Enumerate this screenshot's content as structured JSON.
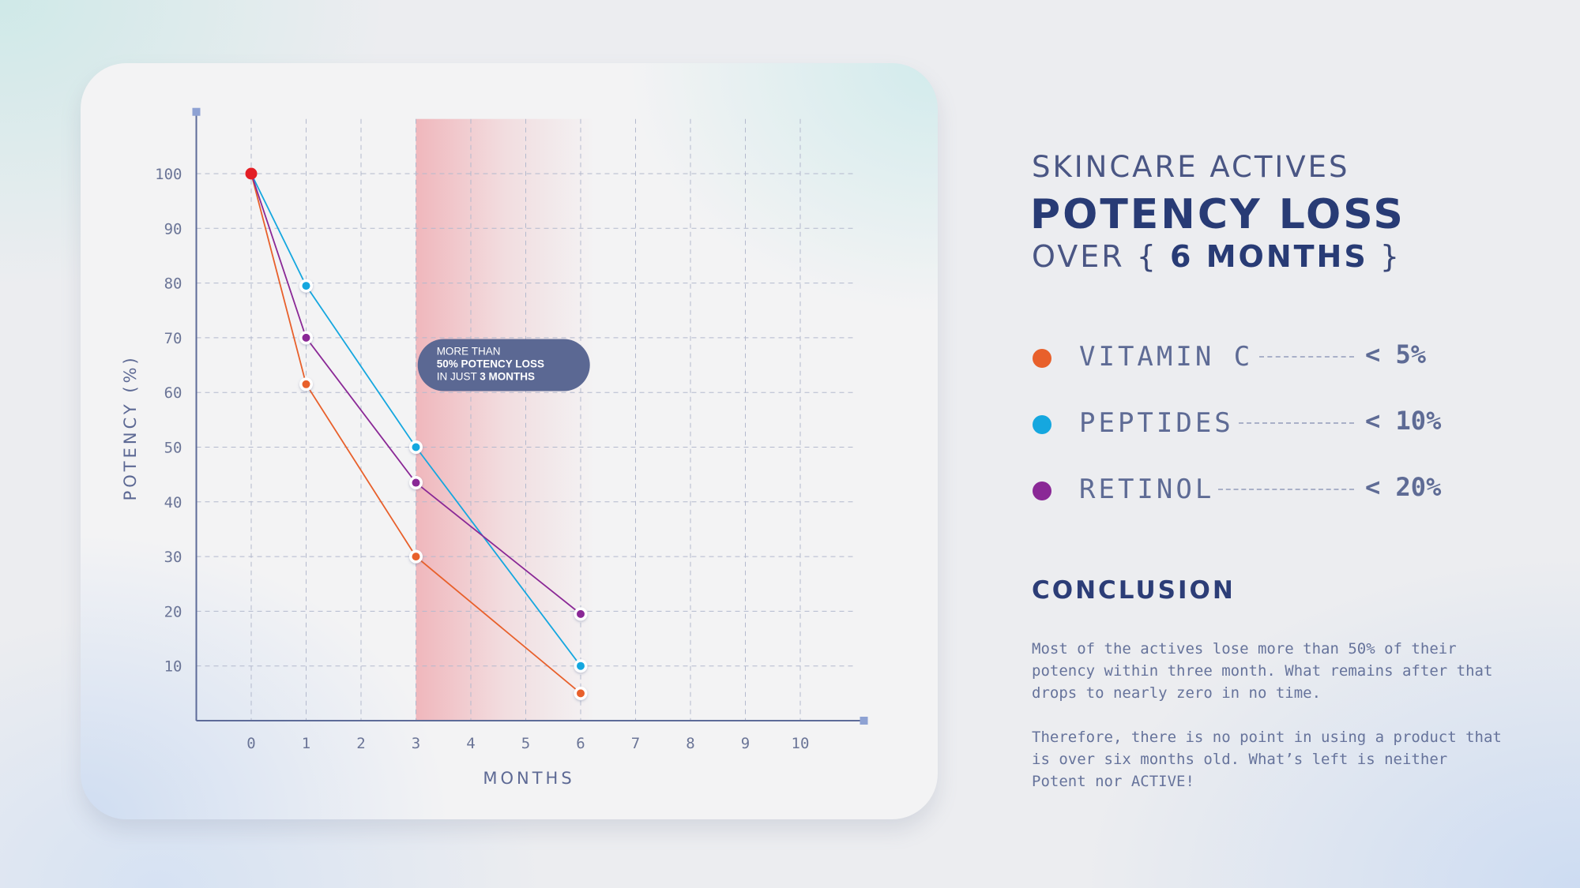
{
  "header": {
    "line1": "SKINCARE ACTIVES",
    "line2": "POTENCY LOSS",
    "line3_prefix": "OVER",
    "line3_open": "{",
    "line3_emphasis": "6 MONTHS",
    "line3_close": "}"
  },
  "legend": [
    {
      "name": "VITAMIN C",
      "value": "< 5%",
      "color": "#e8602b"
    },
    {
      "name": "PEPTIDES",
      "value": "< 10%",
      "color": "#15a7df"
    },
    {
      "name": "RETINOL",
      "value": "< 20%",
      "color": "#8a2896"
    }
  ],
  "conclusion": {
    "title": "CONCLUSION",
    "paragraphs": [
      "Most of the actives lose more than 50% of their potency within three month. What remains after that drops to nearly zero in no time.",
      "Therefore, there is no point in using a product that is over six months old. What’s left is neither Potent nor ACTIVE!"
    ]
  },
  "chart_data": {
    "type": "line",
    "xlabel": "MONTHS",
    "ylabel": "POTENCY (%)",
    "xlim": [
      -1,
      11
    ],
    "ylim": [
      0,
      110
    ],
    "x_ticks": [
      0,
      1,
      2,
      3,
      4,
      5,
      6,
      7,
      8,
      9,
      10
    ],
    "y_ticks": [
      10,
      20,
      30,
      40,
      50,
      60,
      70,
      80,
      90,
      100
    ],
    "grid": true,
    "series": [
      {
        "name": "VITAMIN C",
        "color": "#e8602b",
        "points": [
          [
            0,
            100
          ],
          [
            1,
            61.5
          ],
          [
            3,
            30
          ],
          [
            6,
            5
          ]
        ]
      },
      {
        "name": "PEPTIDES",
        "color": "#15a7df",
        "points": [
          [
            0,
            100
          ],
          [
            1,
            79.5
          ],
          [
            3,
            50
          ],
          [
            6,
            10
          ]
        ]
      },
      {
        "name": "RETINOL",
        "color": "#8a2896",
        "points": [
          [
            0,
            100
          ],
          [
            1,
            70
          ],
          [
            3,
            43.5
          ],
          [
            6,
            19.5
          ]
        ]
      }
    ],
    "start_point": {
      "x": 0,
      "y": 100,
      "color": "#e31e25"
    },
    "highlight_band": {
      "x_from": 3,
      "x_to": 6,
      "color": "#ee8f97"
    },
    "annotation": {
      "x": 4.6,
      "y": 65,
      "lines": [
        [
          {
            "text": "MORE THAN",
            "bold": false
          }
        ],
        [
          {
            "text": "50% POTENCY LOSS",
            "bold": true
          }
        ],
        [
          {
            "text": "IN JUST ",
            "bold": false
          },
          {
            "text": "3 MONTHS",
            "bold": true
          }
        ]
      ],
      "color": "#5b6893"
    },
    "colors": {
      "axis": "#5d6b98",
      "grid": "#b3b9cd",
      "axis_end": "#8ea2d3"
    }
  }
}
